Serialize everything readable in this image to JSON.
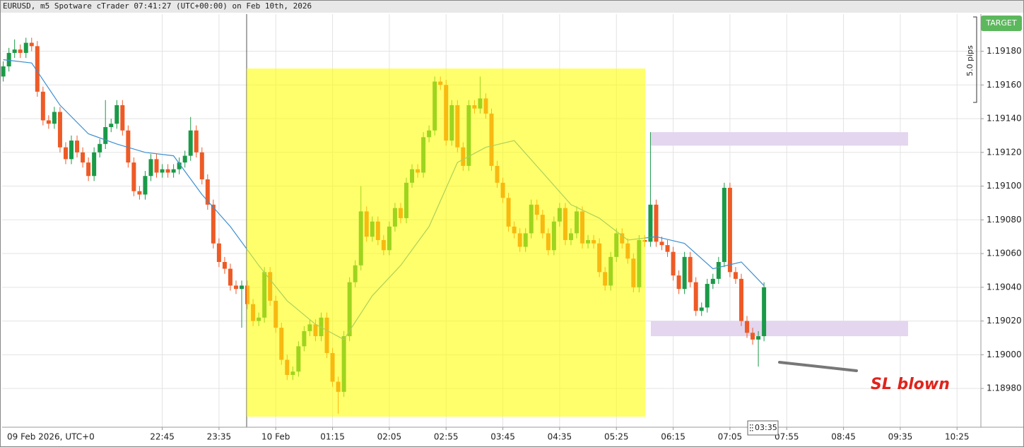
{
  "header": {
    "title": "EURUSD, m5 Spotware cTrader 07:41:27 (UTC+00:00) on Feb 10th, 2026"
  },
  "chart_data": {
    "type": "candlestick",
    "x": [
      "20:25",
      "20:30",
      "20:35",
      "20:40",
      "20:45",
      "20:50",
      "20:55",
      "21:00",
      "21:05",
      "21:10",
      "21:15",
      "21:20",
      "21:25",
      "21:30",
      "21:35",
      "21:40",
      "21:45",
      "21:50",
      "21:55",
      "22:00",
      "22:05",
      "22:10",
      "22:15",
      "22:20",
      "22:25",
      "22:30",
      "22:35",
      "22:40",
      "22:45",
      "22:50",
      "22:55",
      "23:00",
      "23:05",
      "23:10",
      "23:15",
      "23:20",
      "23:25",
      "23:30",
      "23:35",
      "23:40",
      "23:45",
      "23:50",
      "23:55",
      "00:00",
      "00:05",
      "00:10",
      "00:15",
      "00:20",
      "00:25",
      "00:30",
      "00:35",
      "00:40",
      "00:45",
      "00:50",
      "00:55",
      "01:00",
      "01:05",
      "01:10",
      "01:15",
      "01:20",
      "01:25",
      "01:30",
      "01:35",
      "01:40",
      "01:45",
      "01:50",
      "01:55",
      "02:00",
      "02:05",
      "02:10",
      "02:15",
      "02:20",
      "02:25",
      "02:30",
      "02:35",
      "02:40",
      "02:45",
      "02:50",
      "02:55",
      "03:00",
      "03:05",
      "03:10",
      "03:15",
      "03:20",
      "03:25",
      "03:30",
      "03:35",
      "03:40",
      "03:45",
      "03:50",
      "03:55",
      "04:00",
      "04:05",
      "04:10",
      "04:15",
      "04:20",
      "04:25",
      "04:30",
      "04:35",
      "04:40",
      "04:45",
      "04:50",
      "04:55",
      "05:00",
      "05:05",
      "05:10",
      "05:15",
      "05:20",
      "05:25",
      "05:30",
      "05:35",
      "05:40",
      "05:45",
      "05:50",
      "05:55",
      "06:00",
      "06:05",
      "06:10",
      "06:15",
      "06:20",
      "06:25",
      "06:30",
      "06:35",
      "06:40",
      "06:45",
      "06:50",
      "06:55",
      "07:00",
      "07:05",
      "07:10",
      "07:15",
      "07:20",
      "07:25",
      "07:30",
      "07:35"
    ],
    "open": [
      1.19165,
      1.19171,
      1.19179,
      1.19181,
      1.19179,
      1.19185,
      1.19183,
      1.19156,
      1.19139,
      1.19137,
      1.19144,
      1.19123,
      1.19116,
      1.19127,
      1.1912,
      1.19114,
      1.19106,
      1.1912,
      1.19125,
      1.19135,
      1.19137,
      1.19148,
      1.19133,
      1.19114,
      1.19097,
      1.19095,
      1.19106,
      1.19116,
      1.19108,
      1.1911,
      1.19108,
      1.1911,
      1.19114,
      1.19118,
      1.19133,
      1.1912,
      1.19104,
      1.19089,
      1.19066,
      1.19055,
      1.19051,
      1.19041,
      1.19039,
      1.19041,
      1.1903,
      1.1902,
      1.19022,
      1.19049,
      1.19032,
      1.19016,
      1.18997,
      1.18988,
      1.1899,
      1.19005,
      1.19014,
      1.19018,
      1.19011,
      1.19022,
      1.19001,
      1.18984,
      1.18978,
      1.19011,
      1.19043,
      1.19053,
      1.19085,
      1.1907,
      1.19079,
      1.19068,
      1.19062,
      1.19076,
      1.19087,
      1.19081,
      1.19102,
      1.1911,
      1.19108,
      1.19129,
      1.19133,
      1.19162,
      1.1916,
      1.19127,
      1.19148,
      1.19123,
      1.19112,
      1.19148,
      1.19146,
      1.19152,
      1.19143,
      1.19112,
      1.19102,
      1.19093,
      1.19076,
      1.19072,
      1.19064,
      1.19072,
      1.19089,
      1.19083,
      1.19072,
      1.19062,
      1.19079,
      1.19087,
      1.19068,
      1.19072,
      1.19085,
      1.19066,
      1.19068,
      1.19066,
      1.19049,
      1.19041,
      1.19058,
      1.19072,
      1.19066,
      1.19057,
      1.1904,
      1.19068,
      1.19067,
      1.19089,
      1.19067,
      1.19065,
      1.19061,
      1.19047,
      1.19039,
      1.19058,
      1.19043,
      1.19026,
      1.19028,
      1.19042,
      1.19045,
      1.19055,
      1.19099,
      1.19049,
      1.19045,
      1.1902,
      1.19013,
      1.19009,
      1.19011
    ],
    "high": [
      1.19174,
      1.19182,
      1.19187,
      1.19184,
      1.19188,
      1.19188,
      1.19186,
      1.19159,
      1.19142,
      1.19147,
      1.19147,
      1.19126,
      1.1913,
      1.1913,
      1.19123,
      1.19117,
      1.19123,
      1.19128,
      1.19151,
      1.1914,
      1.19151,
      1.19151,
      1.19136,
      1.19117,
      1.191,
      1.19109,
      1.19119,
      1.19119,
      1.19113,
      1.19113,
      1.19113,
      1.19117,
      1.19121,
      1.19141,
      1.19136,
      1.19123,
      1.19107,
      1.19092,
      1.19069,
      1.19058,
      1.19054,
      1.19044,
      1.19044,
      1.19044,
      1.19033,
      1.19025,
      1.19052,
      1.19052,
      1.19035,
      1.19019,
      1.19,
      1.18993,
      1.19008,
      1.19017,
      1.19021,
      1.19021,
      1.19025,
      1.19025,
      1.19004,
      1.18987,
      1.19014,
      1.19046,
      1.19056,
      1.191,
      1.19088,
      1.19082,
      1.19082,
      1.19071,
      1.19079,
      1.1909,
      1.1909,
      1.19105,
      1.19113,
      1.19113,
      1.19132,
      1.19136,
      1.19165,
      1.19165,
      1.19163,
      1.19151,
      1.19151,
      1.19126,
      1.19151,
      1.19151,
      1.19165,
      1.19155,
      1.19146,
      1.19115,
      1.19105,
      1.19096,
      1.19079,
      1.19075,
      1.19075,
      1.19092,
      1.19092,
      1.19086,
      1.19075,
      1.19082,
      1.1909,
      1.1909,
      1.19075,
      1.19088,
      1.19088,
      1.19071,
      1.19071,
      1.19069,
      1.19052,
      1.19061,
      1.19075,
      1.19075,
      1.19069,
      1.1906,
      1.19071,
      1.19071,
      1.19132,
      1.19092,
      1.1907,
      1.19068,
      1.19064,
      1.1905,
      1.19061,
      1.19061,
      1.19046,
      1.19031,
      1.19045,
      1.19048,
      1.19058,
      1.19102,
      1.19102,
      1.19052,
      1.19048,
      1.19023,
      1.19016,
      1.19014,
      1.19043
    ],
    "low": [
      1.19162,
      1.19168,
      1.19176,
      1.19176,
      1.19176,
      1.1918,
      1.19153,
      1.19136,
      1.19134,
      1.19134,
      1.1912,
      1.19113,
      1.19113,
      1.19117,
      1.19111,
      1.19103,
      1.19103,
      1.19117,
      1.19122,
      1.19132,
      1.19134,
      1.1913,
      1.19111,
      1.19094,
      1.19092,
      1.19092,
      1.19103,
      1.19105,
      1.19105,
      1.19105,
      1.19105,
      1.19107,
      1.19111,
      1.19115,
      1.19117,
      1.19101,
      1.19086,
      1.19063,
      1.19052,
      1.19048,
      1.19038,
      1.19036,
      1.19016,
      1.19027,
      1.19017,
      1.19017,
      1.19019,
      1.19029,
      1.19013,
      1.18994,
      1.18985,
      1.18985,
      1.18987,
      1.19002,
      1.19011,
      1.19008,
      1.19008,
      1.18998,
      1.18981,
      1.18965,
      1.18975,
      1.19008,
      1.1904,
      1.1905,
      1.19067,
      1.19067,
      1.19065,
      1.19059,
      1.19059,
      1.19073,
      1.19078,
      1.19078,
      1.19099,
      1.19105,
      1.19105,
      1.19126,
      1.1913,
      1.19157,
      1.19124,
      1.19124,
      1.1912,
      1.19109,
      1.19109,
      1.19143,
      1.19143,
      1.1914,
      1.19109,
      1.19099,
      1.1909,
      1.19073,
      1.19069,
      1.19061,
      1.19061,
      1.19069,
      1.1908,
      1.19069,
      1.19059,
      1.19059,
      1.19076,
      1.19065,
      1.19065,
      1.19069,
      1.19063,
      1.19063,
      1.19063,
      1.19046,
      1.19038,
      1.19038,
      1.19055,
      1.19063,
      1.19054,
      1.19037,
      1.19037,
      1.19064,
      1.19064,
      1.19064,
      1.19062,
      1.19058,
      1.19044,
      1.19036,
      1.19036,
      1.1904,
      1.19023,
      1.19023,
      1.19025,
      1.19039,
      1.19042,
      1.19052,
      1.19046,
      1.19042,
      1.19017,
      1.1901,
      1.19006,
      1.18993,
      1.19008
    ],
    "close": [
      1.19171,
      1.19179,
      1.19181,
      1.19179,
      1.19185,
      1.19183,
      1.19156,
      1.19139,
      1.19137,
      1.19144,
      1.19123,
      1.19116,
      1.19127,
      1.1912,
      1.19114,
      1.19106,
      1.1912,
      1.19125,
      1.19135,
      1.19137,
      1.19148,
      1.19133,
      1.19114,
      1.19097,
      1.19095,
      1.19106,
      1.19116,
      1.19108,
      1.1911,
      1.19108,
      1.1911,
      1.19114,
      1.19118,
      1.19133,
      1.1912,
      1.19104,
      1.19089,
      1.19066,
      1.19055,
      1.19051,
      1.19041,
      1.19039,
      1.19041,
      1.1903,
      1.1902,
      1.19022,
      1.19049,
      1.19032,
      1.19016,
      1.18997,
      1.18988,
      1.1899,
      1.19005,
      1.19014,
      1.19018,
      1.19011,
      1.19022,
      1.19001,
      1.18984,
      1.18978,
      1.19011,
      1.19043,
      1.19053,
      1.19085,
      1.1907,
      1.19079,
      1.19068,
      1.19062,
      1.19076,
      1.19087,
      1.19081,
      1.19102,
      1.1911,
      1.19108,
      1.19129,
      1.19133,
      1.19162,
      1.1916,
      1.19127,
      1.19148,
      1.19123,
      1.19112,
      1.19148,
      1.19146,
      1.19152,
      1.19143,
      1.19112,
      1.19102,
      1.19093,
      1.19076,
      1.19072,
      1.19064,
      1.19072,
      1.19089,
      1.19083,
      1.19072,
      1.19062,
      1.19079,
      1.19087,
      1.19068,
      1.19072,
      1.19085,
      1.19066,
      1.19068,
      1.19066,
      1.19049,
      1.19041,
      1.19058,
      1.19072,
      1.19066,
      1.19057,
      1.1904,
      1.19068,
      1.19067,
      1.19089,
      1.19067,
      1.19065,
      1.19061,
      1.19047,
      1.19039,
      1.19058,
      1.19043,
      1.19026,
      1.19028,
      1.19042,
      1.19045,
      1.19055,
      1.19099,
      1.19049,
      1.19045,
      1.1902,
      1.19013,
      1.19009,
      1.19011,
      1.1904
    ],
    "up_color": "#1a9a48",
    "down_color": "#ee5a26",
    "ma": {
      "color": "#3d8fd1",
      "x": [
        "20:25",
        "20:50",
        "21:15",
        "21:40",
        "22:05",
        "22:30",
        "22:55",
        "23:20",
        "23:45",
        "00:10",
        "00:35",
        "01:00",
        "01:25",
        "01:50",
        "02:15",
        "02:40",
        "03:05",
        "03:30",
        "03:55",
        "04:20",
        "04:45",
        "05:10",
        "05:35",
        "06:00",
        "06:25",
        "06:50",
        "07:15",
        "07:35"
      ],
      "values": [
        1.19175,
        1.19173,
        1.19148,
        1.19131,
        1.19125,
        1.1912,
        1.19118,
        1.19095,
        1.19076,
        1.19053,
        1.19032,
        1.19018,
        1.19009,
        1.19035,
        1.19053,
        1.19076,
        1.19114,
        1.19123,
        1.19127,
        1.19108,
        1.19089,
        1.19081,
        1.19068,
        1.1907,
        1.19066,
        1.19051,
        1.19055,
        1.19041
      ]
    },
    "zones": {
      "color": "#e3d6ee",
      "ranges": [
        [
          1.19124,
          1.19132
        ],
        [
          1.19011,
          1.1902
        ]
      ]
    },
    "xlim": [
      "20:24",
      "10:46"
    ],
    "xticks": [
      "22:45",
      "23:35",
      {
        "value": "00:25",
        "label": "10 Feb"
      },
      "01:15",
      "02:05",
      "02:55",
      "03:45",
      "04:35",
      "05:25",
      "06:15",
      "07:05",
      "07:55",
      "08:45",
      "09:35",
      "10:25"
    ],
    "ylim": [
      1.18957,
      1.19202
    ],
    "yticks": [
      {
        "value": 1.1898,
        "label": "1.18980"
      },
      {
        "value": 1.19,
        "label": "1.19000"
      },
      {
        "value": 1.1902,
        "label": "1.19020"
      },
      {
        "value": 1.1904,
        "label": "1.19040"
      },
      {
        "value": 1.1906,
        "label": "1.19060"
      },
      {
        "value": 1.1908,
        "label": "1.19080"
      },
      {
        "value": 1.191,
        "label": "1.19100"
      },
      {
        "value": 1.1912,
        "label": "1.19120"
      },
      {
        "value": 1.1914,
        "label": "1.19140"
      },
      {
        "value": 1.1916,
        "label": "1.19160"
      },
      {
        "value": 1.1918,
        "label": "1.19180"
      }
    ],
    "grid": true,
    "date_label": "09 Feb 2026, UTC+0",
    "target_label": "TARGET",
    "ruler_label": "5.0 pips",
    "countdown": "03:35",
    "annotation": "SL blown"
  }
}
